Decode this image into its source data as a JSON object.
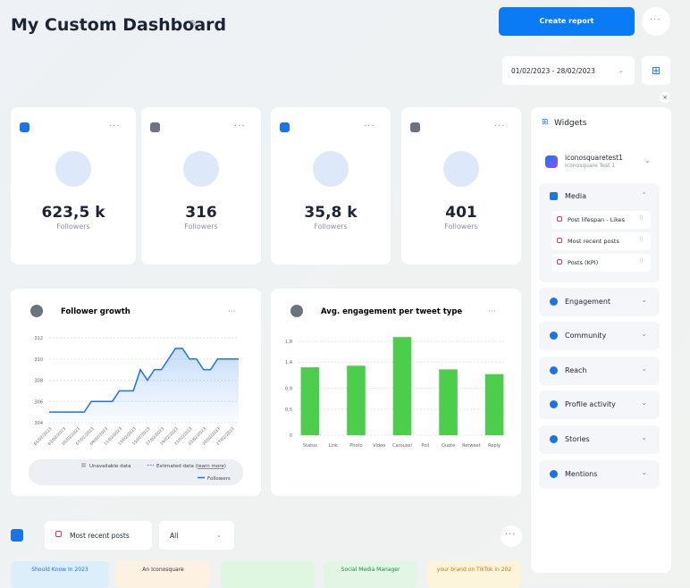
{
  "header": {
    "title": "My Custom Dashboard",
    "create_button": "Create report",
    "date_range": "01/02/2023 - 28/02/2023"
  },
  "kpi_cards": [
    {
      "value": "623,5 k",
      "label": "Followers"
    },
    {
      "value": "316",
      "label": "Followers"
    },
    {
      "value": "35,8 k",
      "label": "Followers"
    },
    {
      "value": "401",
      "label": "Followers"
    }
  ],
  "follower_growth": {
    "type": "line",
    "title": "Follower growth",
    "categories": [
      "01/02/2023",
      null,
      "03/02/2023",
      null,
      "05/02/2023",
      null,
      "07/02/2023",
      null,
      "09/02/2023",
      null,
      "11/02/2023",
      null,
      "13/02/2023",
      null,
      "15/02/2023",
      null,
      "17/02/2023",
      null,
      "19/02/2023",
      null,
      "21/02/2023",
      null,
      "23/02/2023",
      null,
      "25/02/2023",
      null,
      "27/02/2023",
      null
    ],
    "series": [
      {
        "name": "Followers",
        "color": "#1a73e8",
        "values": [
          305,
          305,
          305,
          305,
          305,
          305,
          306,
          306,
          306,
          306,
          307,
          307,
          307,
          309,
          308,
          309,
          309,
          310,
          311,
          311,
          310,
          310,
          309,
          309,
          310,
          310,
          310,
          310
        ]
      }
    ],
    "ylim": [
      304,
      312
    ],
    "yticks": [
      304,
      306,
      308,
      310,
      312
    ],
    "grid": true,
    "legend": {
      "unavailable": "Unavailable data",
      "estimated": "Estimated data (",
      "learn_more": "learn more",
      "estimated_end": ")"
    }
  },
  "engagement": {
    "type": "bar",
    "title": "Avg. engagement per tweet type",
    "categories": [
      "Status",
      "Link",
      "Photo",
      "Video",
      "Carousel",
      "Poll",
      "Quote",
      "Retweet",
      "Reply"
    ],
    "values": [
      1.3,
      0,
      1.33,
      0,
      1.88,
      0,
      1.26,
      0,
      1.17
    ],
    "color": "#4ccd4c",
    "ylim": [
      0,
      1.9
    ],
    "yticks": [
      0,
      {
        "value": 0.5,
        "label": "0,5"
      },
      {
        "value": 0.9,
        "label": "0,9"
      },
      {
        "value": 1.4,
        "label": "1,4"
      },
      {
        "value": 1.8,
        "label": "1,8"
      }
    ],
    "grid": true
  },
  "widgets": {
    "title": "Widgets",
    "account_name": "iconosquaretest1",
    "account_sub": "Iconosquare Test 1",
    "media": {
      "title": "Media",
      "items": [
        "Post lifespan - Likes",
        "Most recent posts",
        "Posts (KPI)"
      ]
    },
    "sections": [
      "Engagement",
      "Community",
      "Reach",
      "Profile activity",
      "Stories",
      "Mentions"
    ]
  },
  "bottom": {
    "dropdown": "Most recent posts",
    "filter": "All",
    "thumbnails": [
      "Should Know In 2023",
      "An Iconosquare",
      "",
      "Social Media Manager",
      "your brand on TikTok in 202"
    ]
  }
}
